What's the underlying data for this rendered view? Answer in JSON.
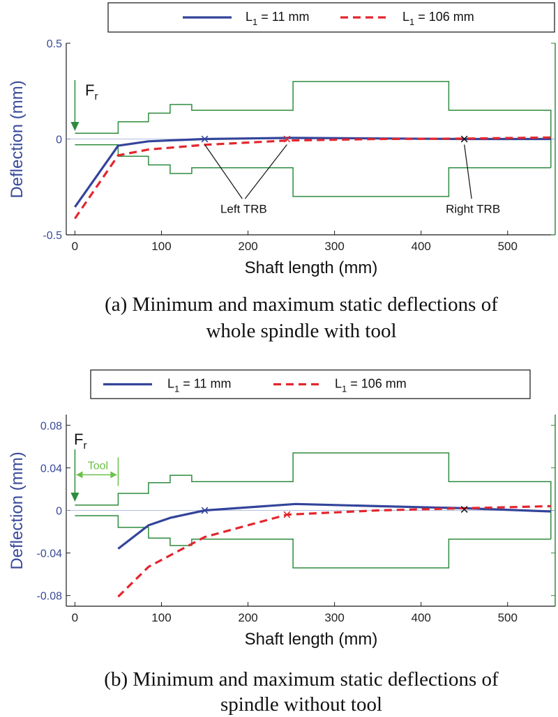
{
  "colors": {
    "series1": "#33449a",
    "series2": "#e3262e",
    "outline": "#2e8b3e",
    "axis_label": "#3a4a9a",
    "tool": "#6cc04a",
    "leader": "#111111",
    "marker_black": "#111111"
  },
  "chart_data": [
    {
      "type": "line",
      "id": "a",
      "caption_line1": "(a) Minimum and maximum static deflections of",
      "caption_line2": "whole spindle with tool",
      "xlabel": "Shaft length (mm)",
      "ylabel": "Deflection (mm)",
      "xlim": [
        -10,
        555
      ],
      "ylim": [
        -0.5,
        0.5
      ],
      "xticks": [
        0,
        100,
        200,
        300,
        400,
        500
      ],
      "xtick_labels": [
        "0",
        "100",
        "200",
        "300",
        "400",
        "500"
      ],
      "yticks": [
        0.5,
        0,
        -0.5
      ],
      "ytick_labels": [
        "0.5",
        "0",
        "-0.5"
      ],
      "legend": [
        {
          "main": "L",
          "sub": "1",
          "rest": " = 11 mm"
        },
        {
          "main": "L",
          "sub": "1",
          "rest": " = 106 mm"
        }
      ],
      "series": [
        {
          "name": "L1 = 11 mm",
          "style": "solid",
          "x": [
            0,
            50,
            85,
            150,
            250,
            450,
            550
          ],
          "y": [
            -0.355,
            -0.035,
            -0.012,
            0.0,
            0.006,
            0.0,
            0.0
          ]
        },
        {
          "name": "L1 = 106 mm",
          "style": "dashed",
          "x": [
            0,
            50,
            85,
            150,
            245,
            350,
            450,
            550
          ],
          "y": [
            -0.415,
            -0.085,
            -0.055,
            -0.03,
            -0.008,
            0.0,
            0.002,
            0.008
          ]
        }
      ],
      "shaft_outline": {
        "x": [
          0,
          50,
          50,
          85,
          85,
          110,
          110,
          135,
          135,
          252,
          252,
          432,
          432,
          550
        ],
        "r": [
          0.03,
          0.03,
          0.09,
          0.09,
          0.135,
          0.135,
          0.18,
          0.18,
          0.15,
          0.15,
          0.3,
          0.3,
          0.15,
          0.15
        ]
      },
      "markers": [
        {
          "x": 150,
          "y": 0,
          "symbol": "×",
          "color": "series1"
        },
        {
          "x": 245,
          "y": 0,
          "symbol": "×",
          "color": "series2"
        },
        {
          "x": 450,
          "y": 0,
          "symbol": "×",
          "color": "marker_black"
        }
      ],
      "force_label": {
        "main": "F",
        "sub": "r"
      },
      "annotations": [
        {
          "text": "Left TRB",
          "x": 195,
          "y": -0.37,
          "targets": [
            {
              "x": 150,
              "y": 0
            },
            {
              "x": 245,
              "y": 0
            }
          ]
        },
        {
          "text": "Right TRB",
          "x": 460,
          "y": -0.37,
          "targets": [
            {
              "x": 450,
              "y": 0
            }
          ]
        }
      ]
    },
    {
      "type": "line",
      "id": "b",
      "caption_line1": "(b) Minimum and maximum static deflections of",
      "caption_line2": "spindle without tool",
      "xlabel": "Shaft length (mm)",
      "ylabel": "Deflection (mm)",
      "xlim": [
        -10,
        555
      ],
      "ylim": [
        -0.09,
        0.09
      ],
      "xticks": [
        0,
        100,
        200,
        300,
        400,
        500
      ],
      "xtick_labels": [
        "0",
        "100",
        "200",
        "300",
        "400",
        "500"
      ],
      "yticks": [
        0.08,
        0.04,
        0,
        -0.04,
        -0.08
      ],
      "ytick_labels": [
        "0.08",
        "0.04",
        "0",
        "-0.04",
        "-0.08"
      ],
      "legend": [
        {
          "main": "L",
          "sub": "1",
          "rest": " = 11 mm"
        },
        {
          "main": "L",
          "sub": "1",
          "rest": " = 106 mm"
        }
      ],
      "series": [
        {
          "name": "L1 = 11 mm",
          "style": "solid",
          "x": [
            50,
            85,
            110,
            150,
            255,
            350,
            450,
            550
          ],
          "y": [
            -0.036,
            -0.014,
            -0.007,
            0.0,
            0.006,
            0.004,
            0.002,
            -0.001
          ]
        },
        {
          "name": "L1 = 106 mm",
          "style": "dashed",
          "x": [
            50,
            85,
            150,
            245,
            350,
            450,
            550
          ],
          "y": [
            -0.081,
            -0.053,
            -0.025,
            -0.004,
            0.0,
            0.002,
            0.004
          ]
        }
      ],
      "shaft_outline": {
        "x": [
          0,
          50,
          50,
          85,
          85,
          110,
          110,
          135,
          135,
          252,
          252,
          432,
          432,
          550
        ],
        "r": [
          0.005,
          0.005,
          0.016,
          0.016,
          0.026,
          0.026,
          0.033,
          0.033,
          0.027,
          0.027,
          0.054,
          0.054,
          0.027,
          0.027
        ]
      },
      "markers": [
        {
          "x": 150,
          "y": 0,
          "symbol": "×",
          "color": "series1"
        },
        {
          "x": 245,
          "y": -0.004,
          "symbol": "×",
          "color": "series2"
        },
        {
          "x": 450,
          "y": 0.001,
          "symbol": "×",
          "color": "marker_black"
        }
      ],
      "force_label": {
        "main": "F",
        "sub": "r"
      },
      "tool_label": "Tool",
      "tool_span": [
        0,
        50
      ]
    }
  ]
}
